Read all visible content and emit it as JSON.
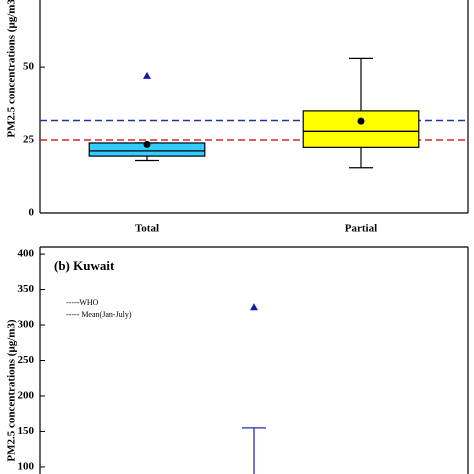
{
  "chart_data": [
    {
      "type": "box",
      "y_label": "PM2.5 concentrations (μg/m3)",
      "categories": [
        "Total",
        "Partial"
      ],
      "boxes": [
        {
          "whisker_low": 18,
          "q1": 19.5,
          "median": 21.3,
          "q3": 24,
          "whisker_high": 24,
          "mean": 23.5,
          "outliers": [
            47
          ],
          "color": "#33ccff"
        },
        {
          "whisker_low": 15.5,
          "q1": 22.5,
          "median": 28,
          "q3": 35,
          "whisker_high": 53,
          "mean": 31.5,
          "outliers": [],
          "color": "#ffff00"
        }
      ],
      "ref_lines": [
        {
          "value": 25,
          "color": "#d62728"
        },
        {
          "value": 31.7,
          "color": "#2233aa"
        }
      ],
      "ylim": [
        0,
        73
      ],
      "yticks": [
        0,
        25,
        50
      ]
    },
    {
      "type": "box",
      "title": "(b) Kuwait",
      "y_label": "PM2.5 concentrations (μg/m3)",
      "categories": [
        null
      ],
      "boxes": [
        {
          "whisker_high": 155,
          "outliers": [
            325
          ],
          "color": "#33ccff"
        }
      ],
      "legend": [
        {
          "label": "-----WHO",
          "color": "#d62728"
        },
        {
          "label": "----- Mean(Jan-July)",
          "color": "#2233aa"
        }
      ],
      "ylim": [
        90,
        410
      ],
      "yticks": [
        100,
        150,
        200,
        250,
        300,
        350,
        400
      ]
    }
  ]
}
